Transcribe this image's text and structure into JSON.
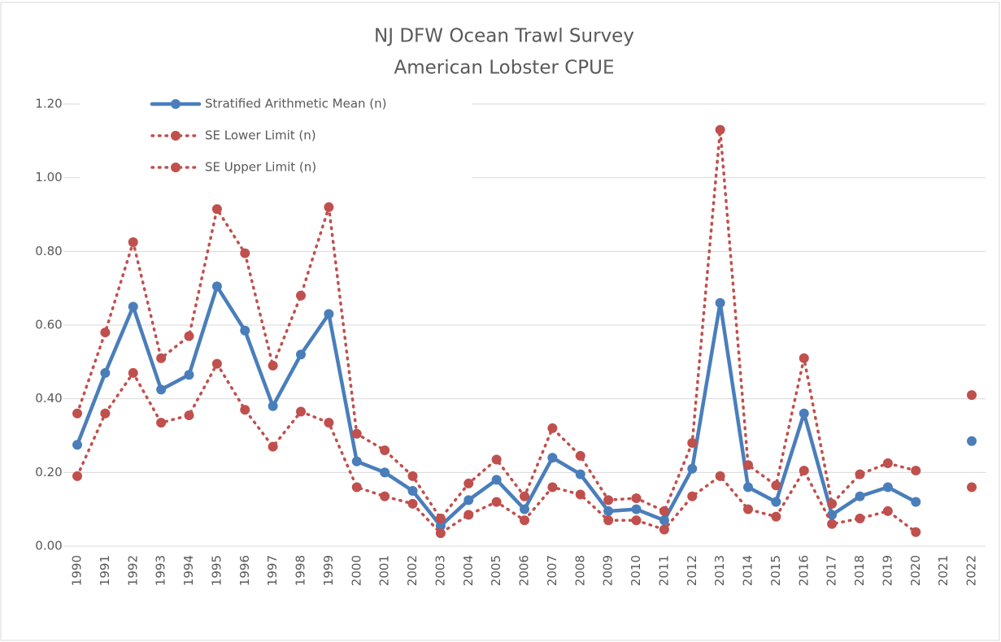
{
  "chart_data": {
    "type": "line",
    "title": [
      "NJ DFW Ocean Trawl Survey",
      "American Lobster CPUE"
    ],
    "categories": [
      "1990",
      "1991",
      "1992",
      "1993",
      "1994",
      "1995",
      "1996",
      "1997",
      "1998",
      "1999",
      "2000",
      "2001",
      "2002",
      "2003",
      "2004",
      "2005",
      "2006",
      "2007",
      "2008",
      "2009",
      "2010",
      "2011",
      "2012",
      "2013",
      "2014",
      "2015",
      "2016",
      "2017",
      "2018",
      "2019",
      "2020",
      "2021",
      "2022"
    ],
    "series": [
      {
        "name": "Stratified Arithmetic Mean (n)",
        "color": "#4a7ebb",
        "line_style": "solid",
        "values": [
          0.275,
          0.47,
          0.65,
          0.425,
          0.465,
          0.705,
          0.585,
          0.38,
          0.52,
          0.63,
          0.23,
          0.2,
          0.15,
          0.055,
          0.125,
          0.18,
          0.1,
          0.24,
          0.195,
          0.095,
          0.1,
          0.07,
          0.21,
          0.66,
          0.16,
          0.12,
          0.36,
          0.085,
          0.135,
          0.16,
          0.12,
          null,
          0.285
        ]
      },
      {
        "name": "SE Lower Limit (n)",
        "color": "#c0504d",
        "line_style": "dotted",
        "values": [
          0.19,
          0.36,
          0.47,
          0.335,
          0.355,
          0.495,
          0.37,
          0.27,
          0.365,
          0.335,
          0.16,
          0.135,
          0.115,
          0.035,
          0.085,
          0.12,
          0.07,
          0.16,
          0.14,
          0.07,
          0.07,
          0.045,
          0.135,
          0.19,
          0.1,
          0.08,
          0.205,
          0.06,
          0.075,
          0.095,
          0.038,
          null,
          0.16
        ]
      },
      {
        "name": "SE Upper Limit (n)",
        "color": "#c0504d",
        "line_style": "dotted",
        "values": [
          0.36,
          0.58,
          0.825,
          0.51,
          0.57,
          0.915,
          0.795,
          0.49,
          0.68,
          0.92,
          0.305,
          0.26,
          0.19,
          0.075,
          0.17,
          0.235,
          0.135,
          0.32,
          0.245,
          0.125,
          0.13,
          0.095,
          0.28,
          1.13,
          0.22,
          0.165,
          0.51,
          0.115,
          0.195,
          0.225,
          0.205,
          null,
          0.41
        ]
      }
    ],
    "ylim": [
      0,
      1.2
    ],
    "yticks": [
      {
        "value": 0,
        "label": "0.00"
      },
      {
        "value": 0.2,
        "label": "0.20"
      },
      {
        "value": 0.4,
        "label": "0.40"
      },
      {
        "value": 0.6,
        "label": "0.60"
      },
      {
        "value": 0.8,
        "label": "0.80"
      },
      {
        "value": 1,
        "label": "1.00"
      },
      {
        "value": 1.2,
        "label": "1.20"
      }
    ],
    "grid": true,
    "legend": "top-left"
  }
}
